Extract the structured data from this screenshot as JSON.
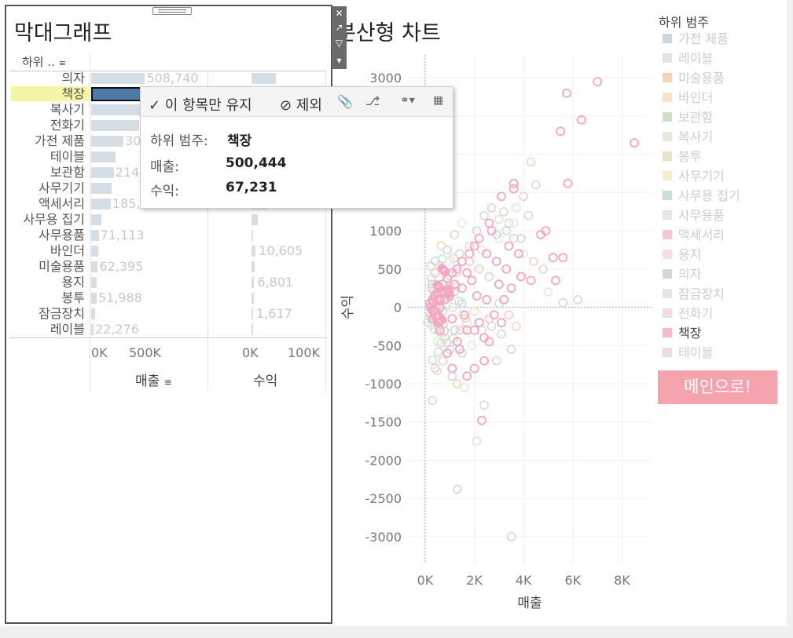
{
  "bar_sheet": {
    "title": "막대그래프",
    "row_header": "하위 ..",
    "col1_title": "매출",
    "col2_title": "수익",
    "col1_ticks": [
      "0K",
      "500K"
    ],
    "col2_ticks": [
      "0K",
      "100K"
    ],
    "rows": [
      {
        "label": "의자",
        "sales_label": "508,740",
        "profit_label": "",
        "sales": 508740,
        "profit": 62000
      },
      {
        "label": "책장",
        "sales_label": "",
        "profit_label": "",
        "sales": 500444,
        "profit": 67231,
        "selected": true
      },
      {
        "label": "복사기",
        "sales_label": "",
        "profit_label": "",
        "sales": 470000,
        "profit": 75000
      },
      {
        "label": "전화기",
        "sales_label": "",
        "profit_label": "",
        "sales": 455000,
        "profit": 70000
      },
      {
        "label": "가전 제품",
        "sales_label": "30",
        "profit_label": "",
        "sales": 305000,
        "profit": 55000
      },
      {
        "label": "테이블",
        "sales_label": "",
        "profit_label": "",
        "sales": 230000,
        "profit": 48000
      },
      {
        "label": "보관함",
        "sales_label": "214",
        "profit_label": "",
        "sales": 214000,
        "profit": 40000
      },
      {
        "label": "사무기기",
        "sales_label": "",
        "profit_label": "",
        "sales": 190000,
        "profit": 35000
      },
      {
        "label": "액세서리",
        "sales_label": "185,",
        "profit_label": "",
        "sales": 185000,
        "profit": 38000
      },
      {
        "label": "사무용 집기",
        "sales_label": "",
        "profit_label": "",
        "sales": 95000,
        "profit": 15000
      },
      {
        "label": "사무용품",
        "sales_label": "71,113",
        "profit_label": "",
        "sales": 71113,
        "profit": 4000
      },
      {
        "label": "바인더",
        "sales_label": "",
        "profit_label": "10,605",
        "sales": 68000,
        "profit": 10605
      },
      {
        "label": "미술용품",
        "sales_label": "62,395",
        "profit_label": "",
        "sales": 62395,
        "profit": 8000
      },
      {
        "label": "용지",
        "sales_label": "",
        "profit_label": "6,801",
        "sales": 55000,
        "profit": 6801
      },
      {
        "label": "봉투",
        "sales_label": "51,988",
        "profit_label": "",
        "sales": 51988,
        "profit": 5000
      },
      {
        "label": "잠금장치",
        "sales_label": "",
        "profit_label": "1,617",
        "sales": 35000,
        "profit": 1617
      },
      {
        "label": "레이블",
        "sales_label": "22,276",
        "profit_label": "",
        "sales": 22276,
        "profit": 1000
      }
    ]
  },
  "tooltip": {
    "keep_only": "✓ 이 항목만 유지",
    "exclude": "⊘ 제외",
    "k1": "하위 범주:",
    "v1": "책장",
    "k2": "매출:",
    "v2": "500,444",
    "k3": "수익:",
    "v3": "67,231"
  },
  "scatter": {
    "title": "분산형 차트",
    "title_visible": "분산형 차트",
    "xlabel": "매출",
    "ylabel": "수익"
  },
  "chart_data": {
    "type": "scatter",
    "title": "분산형 차트",
    "xlabel": "매출",
    "ylabel": "수익",
    "xlim": [
      -700,
      9200
    ],
    "ylim": [
      -3350,
      3300
    ],
    "x_ticks": [
      "0K",
      "2K",
      "4K",
      "6K",
      "8K"
    ],
    "x_tick_values": [
      0,
      2000,
      4000,
      6000,
      8000
    ],
    "y_ticks": [
      3000,
      2500,
      2000,
      1500,
      1000,
      500,
      0,
      -500,
      -1000,
      -1500,
      -2000,
      -2500,
      -3000
    ],
    "highlight_series": "책장",
    "points_highlight": [
      [
        7000,
        2950
      ],
      [
        5750,
        2800
      ],
      [
        6350,
        2450
      ],
      [
        5500,
        2300
      ],
      [
        8500,
        2150
      ],
      [
        5800,
        1620
      ],
      [
        3600,
        1620
      ],
      [
        3600,
        1550
      ],
      [
        3100,
        1450
      ],
      [
        4900,
        1000
      ],
      [
        4700,
        950
      ],
      [
        3400,
        800
      ],
      [
        3800,
        700
      ],
      [
        5200,
        650
      ],
      [
        5600,
        650
      ],
      [
        2600,
        1100
      ],
      [
        2700,
        1000
      ],
      [
        2200,
        900
      ],
      [
        2000,
        800
      ],
      [
        1800,
        700
      ],
      [
        1500,
        600
      ],
      [
        1300,
        500
      ],
      [
        1100,
        450
      ],
      [
        900,
        380
      ],
      [
        700,
        300
      ],
      [
        600,
        250
      ],
      [
        500,
        200
      ],
      [
        400,
        150
      ],
      [
        300,
        100
      ],
      [
        200,
        50
      ],
      [
        2500,
        700
      ],
      [
        2900,
        600
      ],
      [
        3300,
        500
      ],
      [
        1700,
        450
      ],
      [
        1200,
        300
      ],
      [
        800,
        200
      ],
      [
        3900,
        400
      ],
      [
        4300,
        350
      ],
      [
        5300,
        350
      ],
      [
        3500,
        250
      ],
      [
        2800,
        -100
      ],
      [
        2200,
        -200
      ],
      [
        1700,
        -300
      ],
      [
        1300,
        -450
      ],
      [
        900,
        -600
      ],
      [
        2400,
        -700
      ],
      [
        1700,
        -900
      ],
      [
        1100,
        -800
      ],
      [
        2000,
        -800
      ],
      [
        2600,
        -450
      ],
      [
        3100,
        -200
      ],
      [
        2300,
        -1480
      ],
      [
        1400,
        -550
      ],
      [
        600,
        -300
      ],
      [
        300,
        -150
      ],
      [
        800,
        100
      ],
      [
        1000,
        150
      ],
      [
        1500,
        250
      ],
      [
        1900,
        350
      ],
      [
        2100,
        150
      ],
      [
        2500,
        100
      ],
      [
        3000,
        300
      ],
      [
        3200,
        100
      ],
      [
        600,
        0
      ],
      [
        400,
        -50
      ],
      [
        1100,
        -150
      ],
      [
        1600,
        -100
      ],
      [
        2000,
        -300
      ],
      [
        2400,
        -400
      ]
    ],
    "points_other": [
      [
        6200,
        100
      ],
      [
        5600,
        60
      ],
      [
        5000,
        200
      ],
      [
        4300,
        1900
      ],
      [
        4500,
        1600
      ],
      [
        4200,
        1200
      ],
      [
        4000,
        1450
      ],
      [
        3700,
        1300
      ],
      [
        3900,
        900
      ],
      [
        3400,
        1100
      ],
      [
        3000,
        900
      ],
      [
        3700,
        -250
      ],
      [
        3500,
        -550
      ],
      [
        2900,
        -700
      ],
      [
        3500,
        -3000
      ],
      [
        2100,
        -1750
      ],
      [
        1300,
        -2380
      ],
      [
        2400,
        -1280
      ],
      [
        1600,
        -1050
      ],
      [
        1300,
        -1000
      ],
      [
        1100,
        -900
      ],
      [
        300,
        -1220
      ],
      [
        400,
        -800
      ],
      [
        700,
        -700
      ],
      [
        1000,
        -550
      ],
      [
        1500,
        -600
      ],
      [
        1900,
        -500
      ],
      [
        2300,
        -300
      ],
      [
        2700,
        -250
      ],
      [
        3100,
        -350
      ],
      [
        2600,
        -150
      ],
      [
        2000,
        -50
      ],
      [
        1500,
        50
      ],
      [
        1000,
        200
      ],
      [
        500,
        100
      ],
      [
        200,
        -100
      ],
      [
        100,
        -200
      ],
      [
        150,
        50
      ],
      [
        250,
        250
      ],
      [
        600,
        550
      ],
      [
        900,
        750
      ],
      [
        1200,
        950
      ],
      [
        1500,
        1100
      ],
      [
        1800,
        800
      ],
      [
        2100,
        1000
      ],
      [
        2400,
        1200
      ],
      [
        2700,
        1300
      ],
      [
        3000,
        1150
      ],
      [
        3300,
        1000
      ],
      [
        3600,
        900
      ],
      [
        4000,
        700
      ],
      [
        2200,
        500
      ],
      [
        2600,
        400
      ],
      [
        3000,
        50
      ],
      [
        3400,
        -100
      ],
      [
        1700,
        -200
      ],
      [
        1200,
        -300
      ],
      [
        800,
        -400
      ],
      [
        500,
        -450
      ],
      [
        4400,
        600
      ],
      [
        4800,
        500
      ],
      [
        1400,
        700
      ],
      [
        1800,
        600
      ],
      [
        2300,
        750
      ],
      [
        2900,
        950
      ],
      [
        3200,
        1250
      ],
      [
        3600,
        1100
      ]
    ]
  },
  "legend": {
    "title": "하위 범주",
    "items": [
      {
        "label": "가전 제품",
        "color": "#c9d6e3"
      },
      {
        "label": "레이블",
        "color": "#dde4ea"
      },
      {
        "label": "미술용품",
        "color": "#f5d3b5"
      },
      {
        "label": "바인더",
        "color": "#f8e2c9"
      },
      {
        "label": "보관함",
        "color": "#cfe0c6"
      },
      {
        "label": "복사기",
        "color": "#e1ebd9"
      },
      {
        "label": "봉투",
        "color": "#e8e2cd"
      },
      {
        "label": "사무기기",
        "color": "#f5ecd0"
      },
      {
        "label": "사무용 집기",
        "color": "#cddcdc"
      },
      {
        "label": "사무용품",
        "color": "#e0e9e6"
      },
      {
        "label": "액세서리",
        "color": "#f3c9cf"
      },
      {
        "label": "용지",
        "color": "#f8dfe1"
      },
      {
        "label": "의자",
        "color": "#d6d6d6"
      },
      {
        "label": "잠금장치",
        "color": "#e5e5e5"
      },
      {
        "label": "전화기",
        "color": "#efdde3"
      },
      {
        "label": "책장",
        "color": "#f7b9cc",
        "active": true
      },
      {
        "label": "테이블",
        "color": "#e9dde2"
      }
    ]
  },
  "main_button": "메인으로!",
  "colors": {
    "selected_bar": "#4e79a7",
    "bar": "#d5dde5",
    "highlight": "#f6a6c1",
    "accent_btn": "#f5a3ac",
    "row_highlight": "#f5f5a6"
  }
}
